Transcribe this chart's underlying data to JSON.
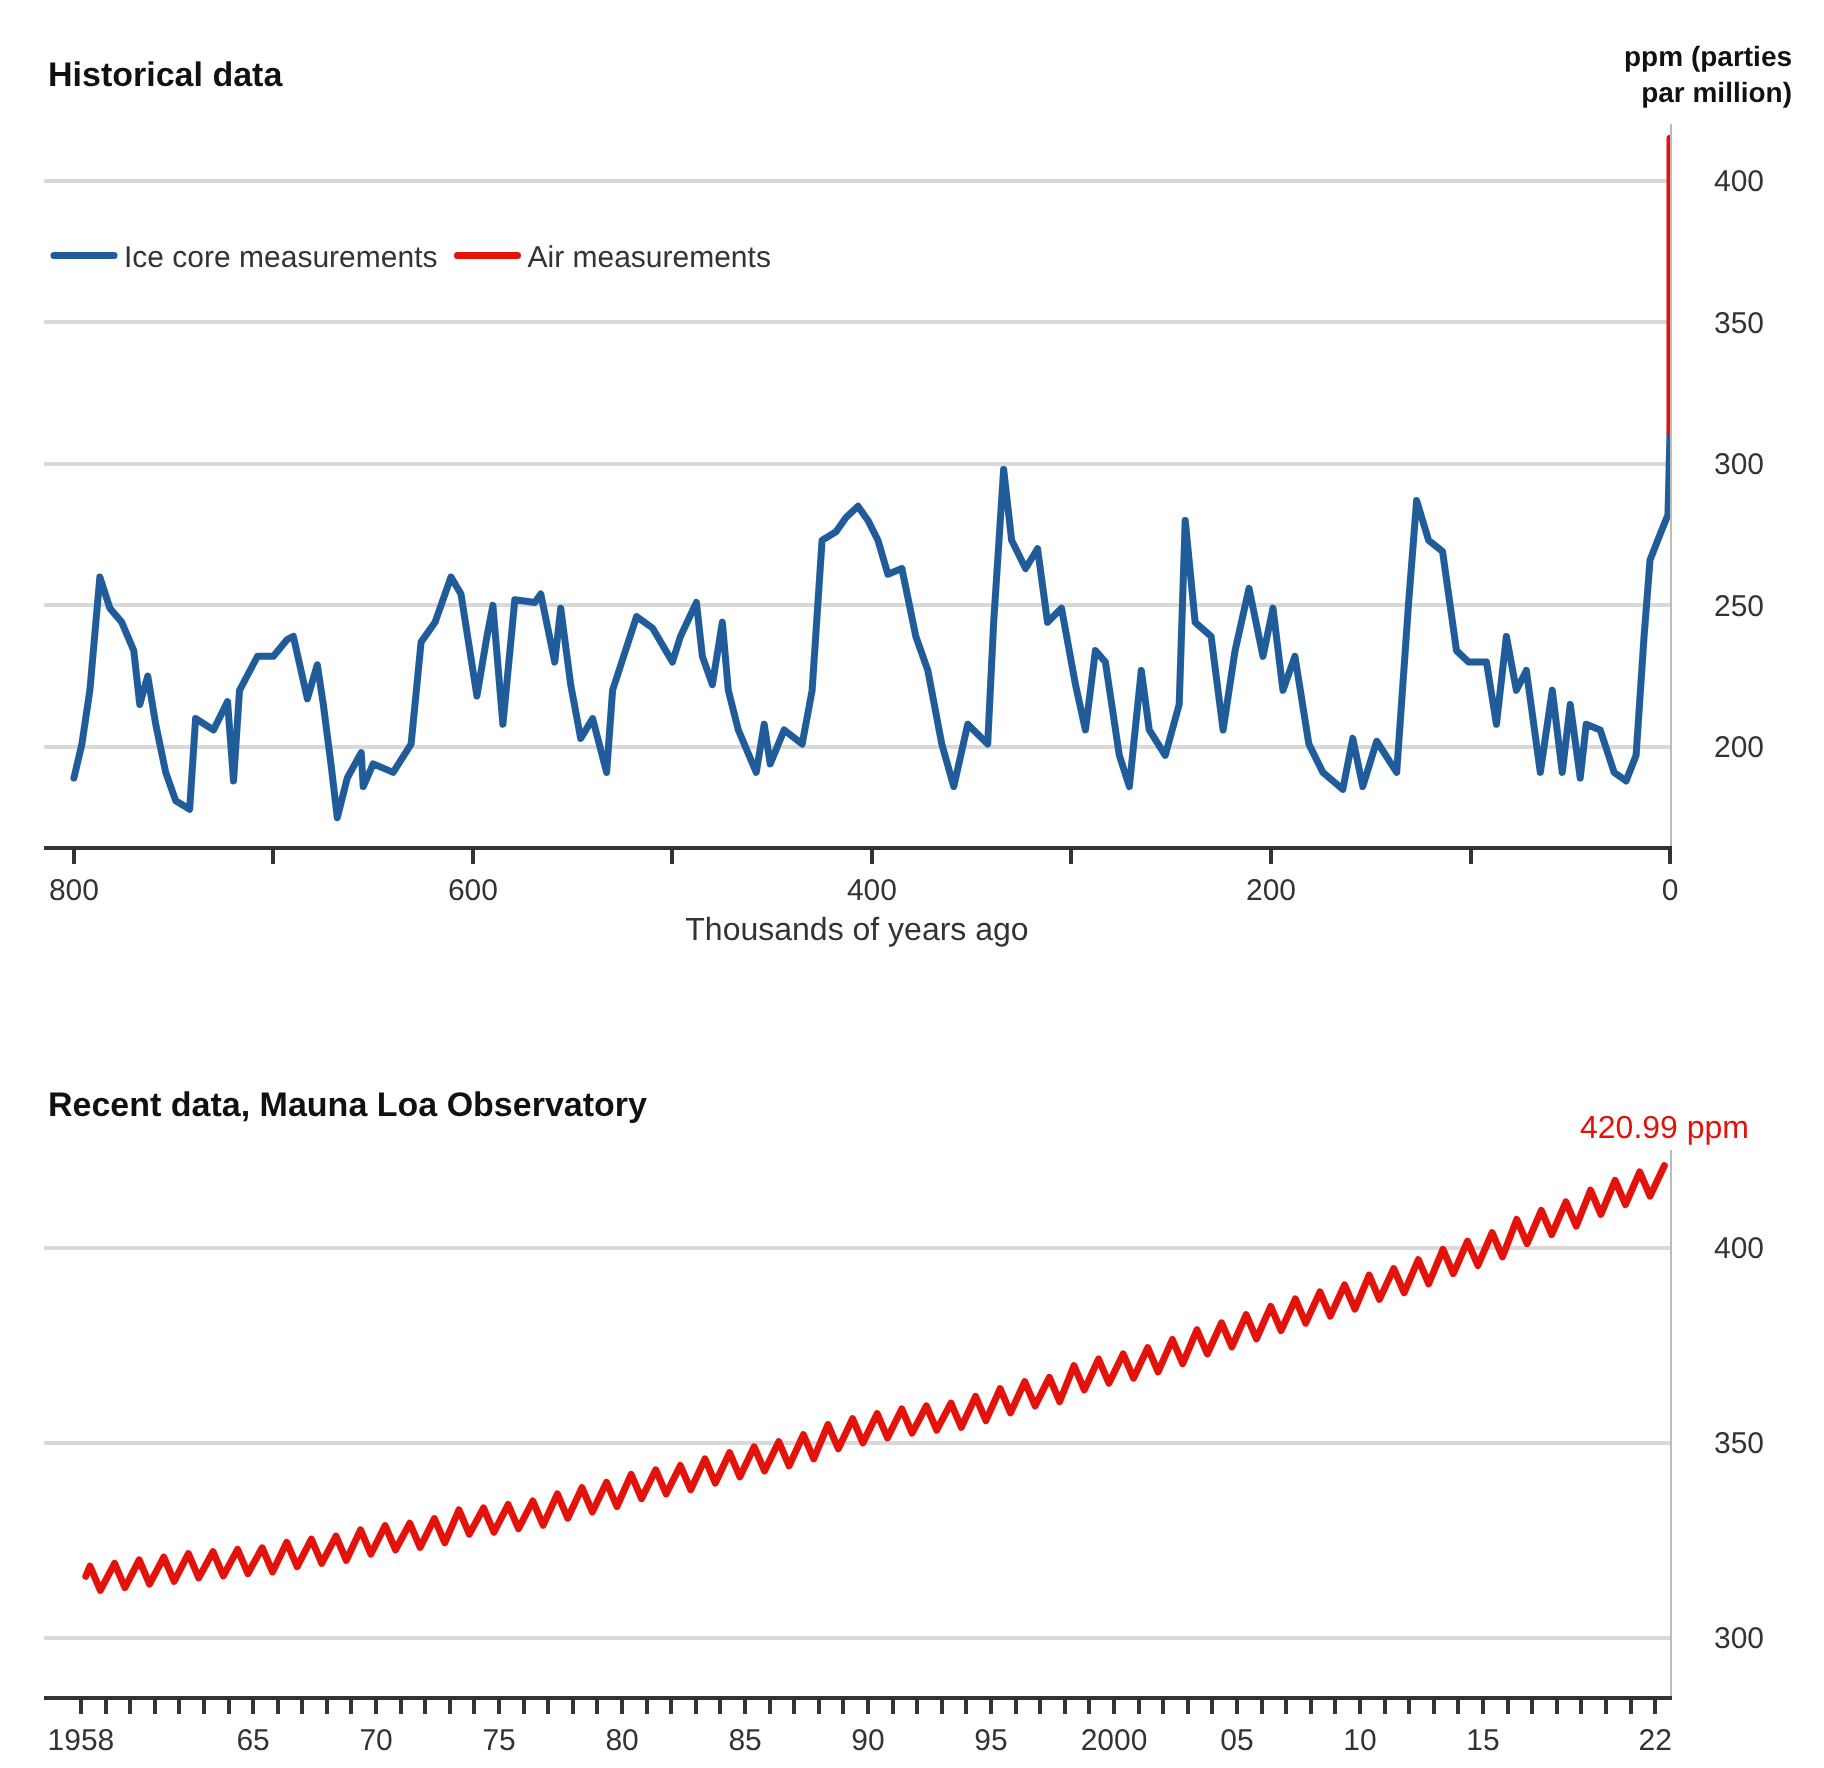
{
  "chart_data": [
    {
      "type": "line",
      "title": "Historical data",
      "xlabel": "Thousands of years ago",
      "ylabel": "ppm (parties par million)",
      "xlim": [
        815,
        0
      ],
      "xticks": [
        800,
        {
          "value": 700,
          "label": null
        },
        600,
        {
          "value": 500,
          "label": null
        },
        400,
        {
          "value": 300,
          "label": null
        },
        200,
        {
          "value": 100,
          "label": null
        },
        0
      ],
      "ylim": [
        165,
        420
      ],
      "yticks": [
        200,
        250,
        300,
        350,
        400
      ],
      "grid": "y",
      "legend": "top left",
      "series": [
        {
          "name": "Ice core measurements",
          "color": "#1f5c99",
          "x": [
            800,
            796,
            792,
            787,
            782,
            776,
            770,
            767,
            763,
            759,
            754,
            749,
            742,
            739,
            730,
            723,
            720,
            717,
            708,
            700,
            693,
            690,
            683,
            678,
            675,
            671,
            668,
            663,
            656,
            655,
            650,
            640,
            631,
            626,
            619,
            611,
            606,
            598,
            593,
            590,
            585,
            579,
            569,
            566,
            559,
            556,
            551,
            546,
            540,
            533,
            530,
            518,
            510,
            500,
            496,
            488,
            485,
            480,
            475,
            472,
            467,
            458,
            454,
            451,
            444,
            435,
            430,
            425,
            418,
            413,
            407,
            402,
            397,
            392,
            385,
            378,
            372,
            365,
            359,
            352,
            342,
            339,
            334,
            330,
            323,
            317,
            312,
            305,
            298,
            293,
            288,
            283,
            276,
            271,
            265,
            261,
            253,
            246,
            243,
            238,
            230,
            224,
            218,
            211,
            204,
            199,
            194,
            188,
            181,
            174,
            164,
            159,
            154,
            147,
            137,
            131,
            127,
            121,
            114,
            107,
            101,
            92,
            87,
            82,
            77,
            72,
            65,
            59,
            54,
            50,
            45,
            42,
            35,
            28,
            22,
            17,
            13,
            10,
            5,
            1,
            0
          ],
          "values": [
            189,
            201,
            220,
            260,
            249,
            244,
            234,
            215,
            225,
            208,
            191,
            181,
            178,
            210,
            206,
            216,
            188,
            220,
            232,
            232,
            238,
            239,
            217,
            229,
            215,
            193,
            175,
            189,
            198,
            186,
            194,
            191,
            201,
            237,
            244,
            260,
            254,
            218,
            239,
            250,
            208,
            252,
            251,
            254,
            230,
            249,
            222,
            203,
            210,
            191,
            220,
            246,
            242,
            230,
            239,
            251,
            232,
            222,
            244,
            220,
            206,
            191,
            208,
            194,
            206,
            201,
            220,
            273,
            276,
            281,
            285,
            280,
            273,
            261,
            263,
            239,
            227,
            201,
            186,
            208,
            201,
            244,
            298,
            273,
            263,
            270,
            244,
            249,
            222,
            206,
            234,
            230,
            197,
            186,
            227,
            206,
            197,
            215,
            280,
            244,
            239,
            206,
            234,
            256,
            232,
            249,
            220,
            232,
            201,
            191,
            185,
            203,
            186,
            202,
            191,
            251,
            287,
            273,
            269,
            234,
            230,
            230,
            208,
            239,
            220,
            227,
            191,
            220,
            191,
            215,
            189,
            208,
            206,
            191,
            188,
            197,
            239,
            266,
            275,
            282,
            311
          ]
        },
        {
          "name": "Air measurements",
          "color": "#e3120b",
          "x": [
            0,
            0
          ],
          "values": [
            311,
            415
          ]
        }
      ]
    },
    {
      "type": "line",
      "title": "Recent data, Mauna Loa Observatory",
      "xlim": [
        1956.5,
        2022.6
      ],
      "xticks": [
        1958,
        {
          "value": 1959,
          "label": null
        },
        {
          "value": 1960,
          "label": null
        },
        {
          "value": 1961,
          "label": null
        },
        {
          "value": 1962,
          "label": null
        },
        {
          "value": 1963,
          "label": null
        },
        {
          "value": 1964,
          "label": null
        },
        {
          "value": 1965,
          "label": "65"
        },
        {
          "value": 1966,
          "label": null
        },
        {
          "value": 1967,
          "label": null
        },
        {
          "value": 1968,
          "label": null
        },
        {
          "value": 1969,
          "label": null
        },
        {
          "value": 1970,
          "label": "70"
        },
        {
          "value": 1971,
          "label": null
        },
        {
          "value": 1972,
          "label": null
        },
        {
          "value": 1973,
          "label": null
        },
        {
          "value": 1974,
          "label": null
        },
        {
          "value": 1975,
          "label": "75"
        },
        {
          "value": 1976,
          "label": null
        },
        {
          "value": 1977,
          "label": null
        },
        {
          "value": 1978,
          "label": null
        },
        {
          "value": 1979,
          "label": null
        },
        {
          "value": 1980,
          "label": "80"
        },
        {
          "value": 1981,
          "label": null
        },
        {
          "value": 1982,
          "label": null
        },
        {
          "value": 1983,
          "label": null
        },
        {
          "value": 1984,
          "label": null
        },
        {
          "value": 1985,
          "label": "85"
        },
        {
          "value": 1986,
          "label": null
        },
        {
          "value": 1987,
          "label": null
        },
        {
          "value": 1988,
          "label": null
        },
        {
          "value": 1989,
          "label": null
        },
        {
          "value": 1990,
          "label": "90"
        },
        {
          "value": 1991,
          "label": null
        },
        {
          "value": 1992,
          "label": null
        },
        {
          "value": 1993,
          "label": null
        },
        {
          "value": 1994,
          "label": null
        },
        {
          "value": 1995,
          "label": "95"
        },
        {
          "value": 1996,
          "label": null
        },
        {
          "value": 1997,
          "label": null
        },
        {
          "value": 1998,
          "label": null
        },
        {
          "value": 1999,
          "label": null
        },
        2000,
        {
          "value": 2001,
          "label": null
        },
        {
          "value": 2002,
          "label": null
        },
        {
          "value": 2003,
          "label": null
        },
        {
          "value": 2004,
          "label": null
        },
        {
          "value": 2005,
          "label": "05"
        },
        {
          "value": 2006,
          "label": null
        },
        {
          "value": 2007,
          "label": null
        },
        {
          "value": 2008,
          "label": null
        },
        {
          "value": 2009,
          "label": null
        },
        {
          "value": 2010,
          "label": "10"
        },
        {
          "value": 2011,
          "label": null
        },
        {
          "value": 2012,
          "label": null
        },
        {
          "value": 2013,
          "label": null
        },
        {
          "value": 2014,
          "label": null
        },
        {
          "value": 2015,
          "label": "15"
        },
        {
          "value": 2016,
          "label": null
        },
        {
          "value": 2017,
          "label": null
        },
        {
          "value": 2018,
          "label": null
        },
        {
          "value": 2019,
          "label": null
        },
        {
          "value": 2020,
          "label": null
        },
        {
          "value": 2021,
          "label": null
        },
        {
          "value": 2022,
          "label": "22"
        }
      ],
      "ylim": [
        285,
        425
      ],
      "yticks": [
        300,
        350,
        400
      ],
      "grid": "y",
      "annotations": [
        {
          "text": "420.99 ppm",
          "x": 2022.37,
          "y": 420.99
        }
      ],
      "series": [
        {
          "color": "#e3120b",
          "x": [
            1958.2,
            1958.37,
            1958.79,
            1959.37,
            1959.79,
            1960.37,
            1960.79,
            1961.37,
            1961.79,
            1962.37,
            1962.79,
            1963.37,
            1963.79,
            1964.37,
            1964.79,
            1965.37,
            1965.79,
            1966.37,
            1966.79,
            1967.37,
            1967.79,
            1968.37,
            1968.79,
            1969.37,
            1969.79,
            1970.37,
            1970.79,
            1971.37,
            1971.79,
            1972.37,
            1972.79,
            1973.37,
            1973.79,
            1974.37,
            1974.79,
            1975.37,
            1975.79,
            1976.37,
            1976.79,
            1977.37,
            1977.79,
            1978.37,
            1978.79,
            1979.37,
            1979.79,
            1980.37,
            1980.79,
            1981.37,
            1981.79,
            1982.37,
            1982.79,
            1983.37,
            1983.79,
            1984.37,
            1984.79,
            1985.37,
            1985.79,
            1986.37,
            1986.79,
            1987.37,
            1987.79,
            1988.37,
            1988.79,
            1989.37,
            1989.79,
            1990.37,
            1990.79,
            1991.37,
            1991.79,
            1992.37,
            1992.79,
            1993.37,
            1993.79,
            1994.37,
            1994.79,
            1995.37,
            1995.79,
            1996.37,
            1996.79,
            1997.37,
            1997.79,
            1998.37,
            1998.79,
            1999.37,
            1999.79,
            2000.37,
            2000.79,
            2001.37,
            2001.79,
            2002.37,
            2002.79,
            2003.37,
            2003.79,
            2004.37,
            2004.79,
            2005.37,
            2005.79,
            2006.37,
            2006.79,
            2007.37,
            2007.79,
            2008.37,
            2008.79,
            2009.37,
            2009.79,
            2010.37,
            2010.79,
            2011.37,
            2011.79,
            2012.37,
            2012.79,
            2013.37,
            2013.79,
            2014.37,
            2014.79,
            2015.37,
            2015.79,
            2016.37,
            2016.79,
            2017.37,
            2017.79,
            2018.37,
            2018.79,
            2019.37,
            2019.79,
            2020.37,
            2020.79,
            2021.37,
            2021.79,
            2022.37
          ],
          "values": [
            315.7,
            318.3,
            312.1,
            319.0,
            312.8,
            319.9,
            313.7,
            320.6,
            314.4,
            321.5,
            315.3,
            322.0,
            315.8,
            322.6,
            316.4,
            323.0,
            316.8,
            324.4,
            318.2,
            325.2,
            319.0,
            326.0,
            319.8,
            327.6,
            321.4,
            328.7,
            322.5,
            329.3,
            323.1,
            330.5,
            324.3,
            332.7,
            326.5,
            333.2,
            327.0,
            334.1,
            327.9,
            335.0,
            328.8,
            336.8,
            330.6,
            338.4,
            332.2,
            339.8,
            333.6,
            341.8,
            335.6,
            343.0,
            336.8,
            344.1,
            337.9,
            345.8,
            339.6,
            347.4,
            341.2,
            348.9,
            342.7,
            350.2,
            344.0,
            352.0,
            345.8,
            354.6,
            348.4,
            356.1,
            349.9,
            357.4,
            351.2,
            358.6,
            352.4,
            359.4,
            353.2,
            360.1,
            353.9,
            361.8,
            355.6,
            363.8,
            357.6,
            365.6,
            359.4,
            366.7,
            360.5,
            369.7,
            363.5,
            371.4,
            365.2,
            372.7,
            366.5,
            374.3,
            368.1,
            376.4,
            370.2,
            378.9,
            372.7,
            380.7,
            374.5,
            382.8,
            376.6,
            384.9,
            378.7,
            386.8,
            380.6,
            388.6,
            382.4,
            390.4,
            384.2,
            392.9,
            386.7,
            394.6,
            388.4,
            396.9,
            390.7,
            399.5,
            393.3,
            401.6,
            395.4,
            403.8,
            397.6,
            407.2,
            401.0,
            409.5,
            403.3,
            411.7,
            405.5,
            414.7,
            408.5,
            417.2,
            411.0,
            419.4,
            413.2,
            420.99
          ]
        }
      ]
    }
  ]
}
